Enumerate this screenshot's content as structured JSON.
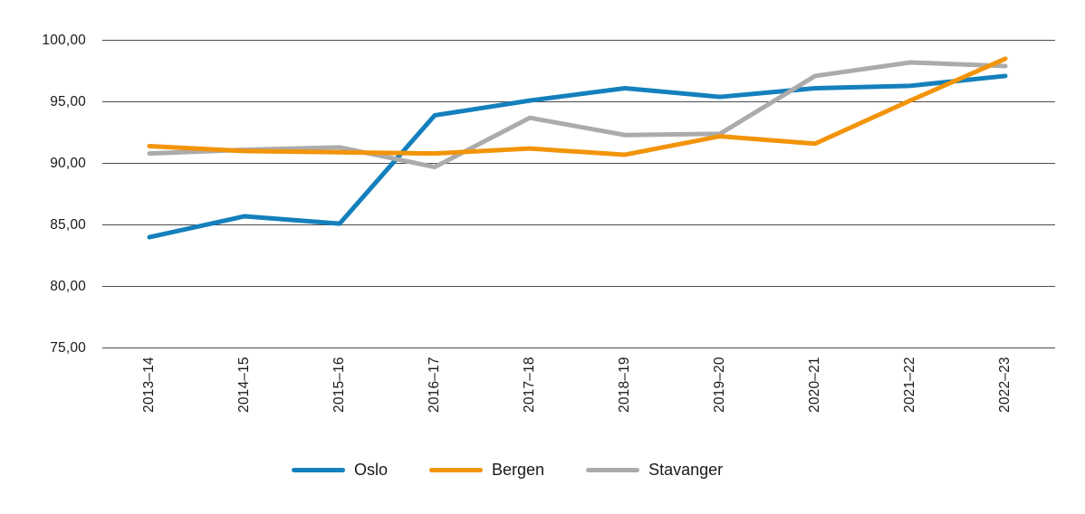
{
  "chart_data": {
    "type": "line",
    "categories": [
      "2013–14",
      "2014–15",
      "2015–16",
      "2016–17",
      "2017–18",
      "2018–19",
      "2019–20",
      "2020–21",
      "2021–22",
      "2022–23"
    ],
    "series": [
      {
        "name": "Oslo",
        "color": "#1480bd",
        "values": [
          84.0,
          85.7,
          85.1,
          93.9,
          95.1,
          96.1,
          95.4,
          96.1,
          96.3,
          97.1
        ]
      },
      {
        "name": "Bergen",
        "color": "#f2940a",
        "values": [
          91.4,
          91.0,
          90.9,
          90.8,
          91.2,
          90.7,
          92.2,
          91.6,
          95.1,
          98.5
        ]
      },
      {
        "name": "Stavanger",
        "color": "#ababab",
        "values": [
          90.8,
          91.1,
          91.3,
          89.7,
          93.7,
          92.3,
          92.4,
          97.1,
          98.2,
          97.9
        ]
      }
    ],
    "yticks": [
      "100,00",
      "95,00",
      "90,00",
      "85,00",
      "80,00",
      "75,00"
    ],
    "ylim": [
      75,
      100
    ],
    "ytick_step": 5,
    "grid": true,
    "grid_color": "#4d4d4d",
    "legend_position": "bottom",
    "xlabel": "",
    "ylabel": "",
    "title": ""
  }
}
